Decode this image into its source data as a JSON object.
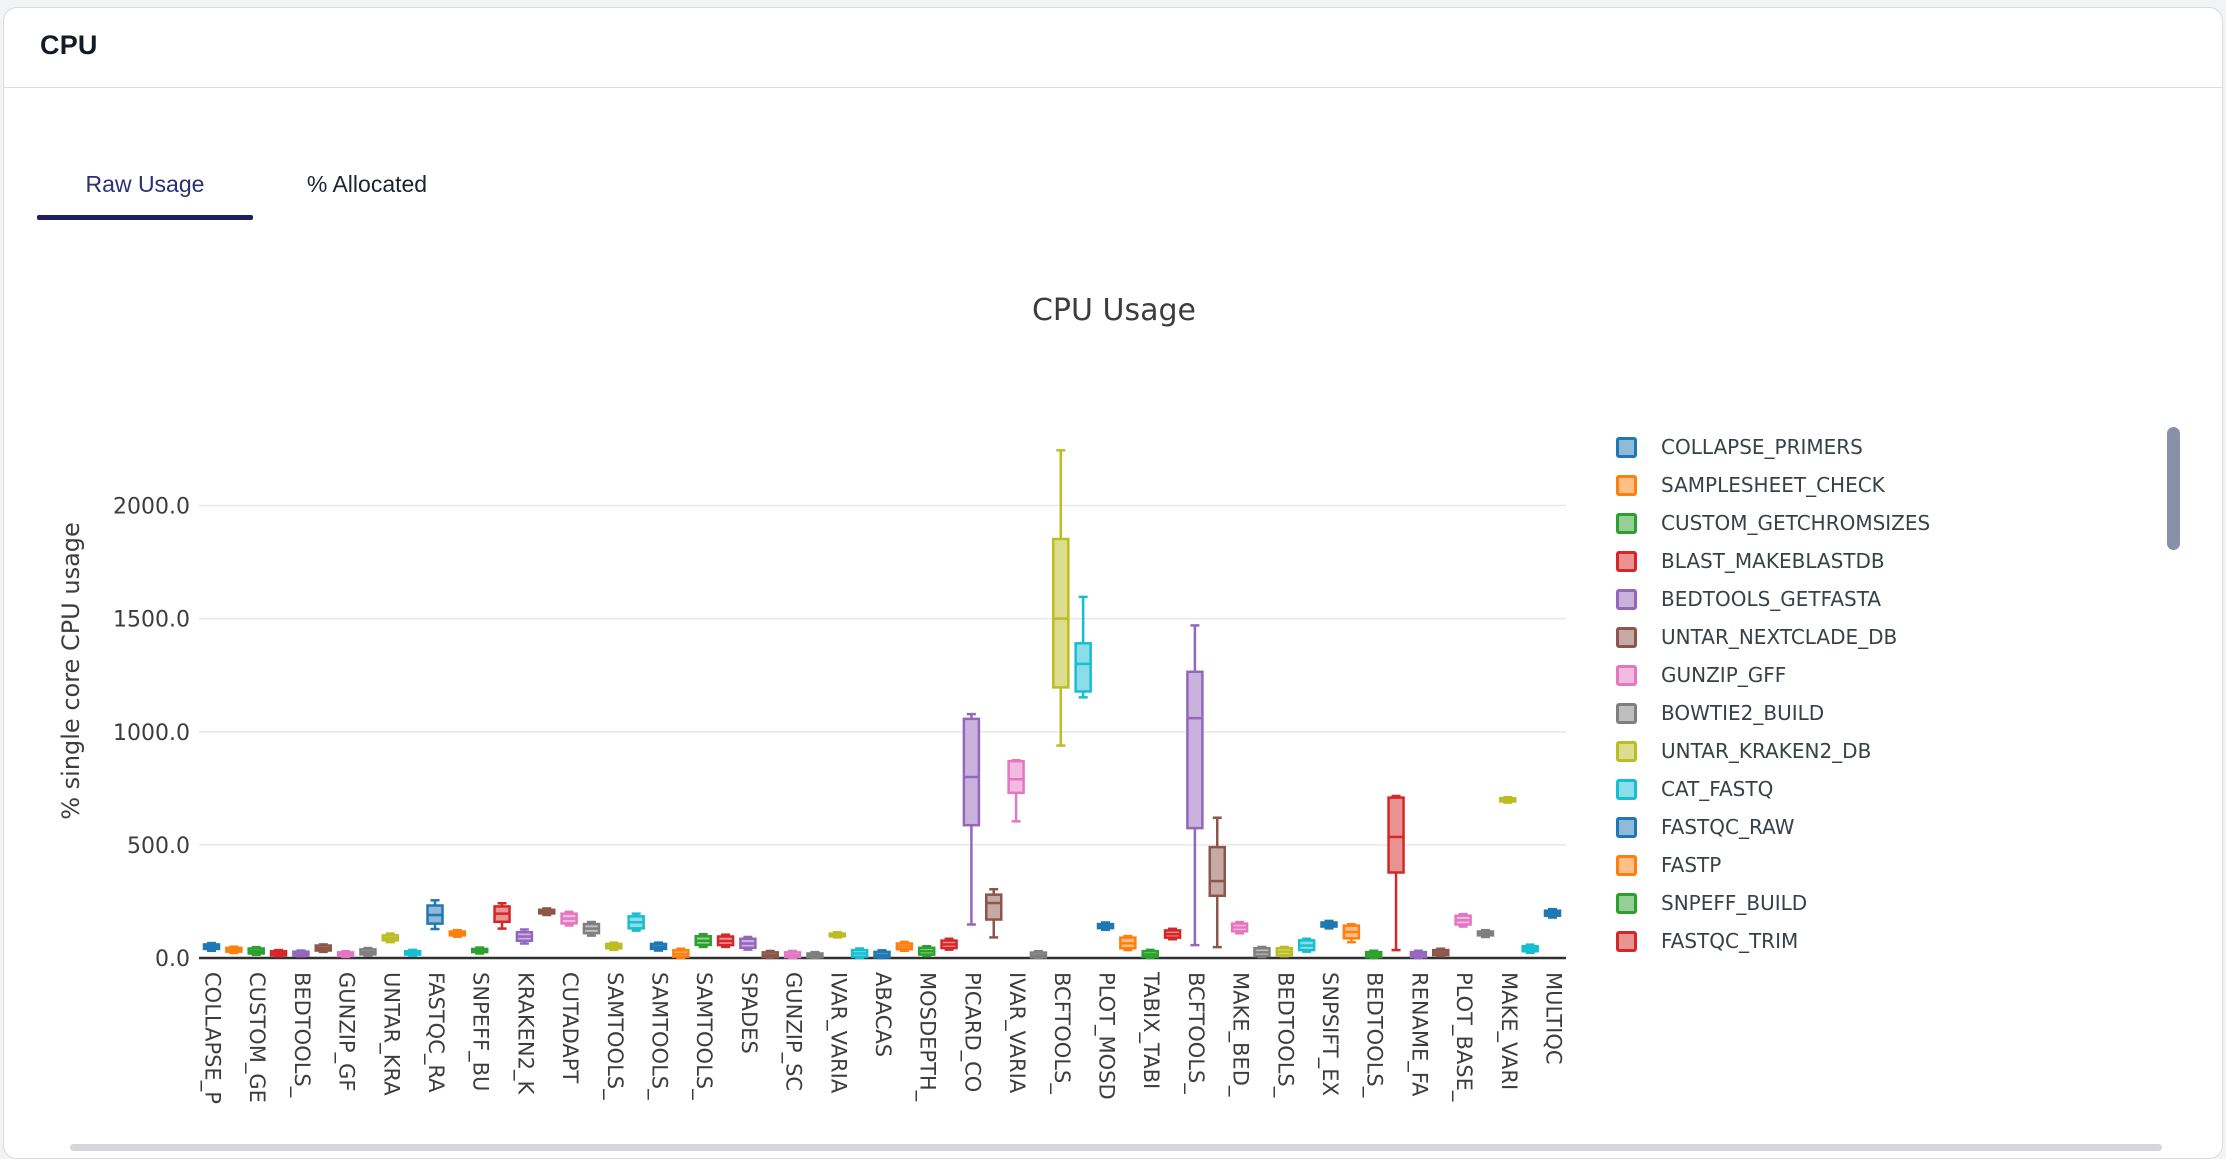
{
  "card": {
    "title": "CPU"
  },
  "tabs": [
    {
      "label": "Raw Usage",
      "active": true
    },
    {
      "label": "% Allocated",
      "active": false
    }
  ],
  "colors": {
    "tab_active": "#2c2e78",
    "tab_underline": "#1d1f5e",
    "tab_inactive": "#1d2330",
    "grid": "#e7e7e7",
    "axis": "#303030",
    "chart_text": "#3d3d3d",
    "legend_text": "#3a4048",
    "legend_scrollbar": "#8791a7",
    "bottom_scrollbar": "#d6d6da",
    "card_border": "#d8dade"
  },
  "chart_data": {
    "type": "boxplot",
    "title": "CPU Usage",
    "xlabel": "",
    "ylabel": "% single core CPU usage",
    "ylim": [
      0,
      2300
    ],
    "grid": true,
    "legend_position": "right",
    "ytick_values": [
      0,
      500,
      1000,
      1500,
      2000
    ],
    "ytick_labels": [
      "0.0",
      "500.0",
      "1000.0",
      "1500.0",
      "2000.0"
    ],
    "n_categories": 61,
    "categories_per_label": 2,
    "xtick_labels": [
      "COLLAPSE_P",
      "CUSTOM_GE",
      "BEDTOOLS_",
      "GUNZIP_GF",
      "UNTAR_KRA",
      "FASTQC_RA",
      "SNPEFF_BU",
      "KRAKEN2_K",
      "CUTADAPT",
      "SAMTOOLS_",
      "SAMTOOLS_",
      "SAMTOOLS_",
      "SPADES",
      "GUNZIP_SC",
      "IVAR_VARIA",
      "ABACAS",
      "MOSDEPTH_",
      "PICARD_CO",
      "IVAR_VARIA",
      "BCFTOOLS_",
      "PLOT_MOSD",
      "TABIX_TABI",
      "BCFTOOLS_",
      "MAKE_BED_",
      "BEDTOOLS_",
      "SNPSIFT_EX",
      "BEDTOOLS_",
      "RENAME_FA",
      "PLOT_BASE_",
      "MAKE_VARI",
      "MULTIQC"
    ],
    "palette": [
      "#1f77b4",
      "#ff7f0e",
      "#2ca02c",
      "#d62728",
      "#9467bd",
      "#8c564b",
      "#e377c2",
      "#7f7f7f",
      "#bcbd22",
      "#17becf"
    ],
    "palette_fill": [
      "#8fbbd9",
      "#ffbf86",
      "#95cf95",
      "#ea9393",
      "#c9b3dd",
      "#c5aaa5",
      "#f1bae0",
      "#bfbfbf",
      "#dddd90",
      "#8bdee7"
    ],
    "box_format": [
      "whisker_low",
      "q1",
      "median",
      "q3",
      "whisker_high"
    ],
    "boxes": [
      [
        32,
        40,
        50,
        60,
        66
      ],
      [
        22,
        28,
        36,
        45,
        50
      ],
      [
        14,
        20,
        30,
        42,
        48
      ],
      [
        8,
        12,
        20,
        30,
        35
      ],
      [
        8,
        12,
        18,
        28,
        33
      ],
      [
        27,
        33,
        43,
        55,
        60
      ],
      [
        5,
        9,
        16,
        25,
        30
      ],
      [
        10,
        16,
        26,
        38,
        44
      ],
      [
        70,
        78,
        88,
        100,
        108
      ],
      [
        10,
        15,
        22,
        30,
        36
      ],
      [
        128,
        152,
        190,
        232,
        255
      ],
      [
        94,
        100,
        108,
        117,
        123
      ],
      [
        20,
        26,
        33,
        40,
        46
      ],
      [
        130,
        160,
        196,
        228,
        242
      ],
      [
        64,
        76,
        95,
        114,
        126
      ],
      [
        190,
        197,
        205,
        213,
        219
      ],
      [
        144,
        153,
        174,
        196,
        204
      ],
      [
        99,
        110,
        130,
        150,
        159
      ],
      [
        36,
        43,
        52,
        62,
        68
      ],
      [
        121,
        131,
        158,
        184,
        196
      ],
      [
        33,
        40,
        50,
        62,
        68
      ],
      [
        0,
        6,
        18,
        34,
        41
      ],
      [
        49,
        58,
        76,
        96,
        105
      ],
      [
        49,
        57,
        75,
        95,
        103
      ],
      [
        37,
        45,
        64,
        85,
        93
      ],
      [
        0,
        4,
        13,
        25,
        31
      ],
      [
        0,
        4,
        13,
        25,
        31
      ],
      [
        0,
        3,
        10,
        20,
        26
      ],
      [
        91,
        96,
        102,
        108,
        114
      ],
      [
        0,
        6,
        20,
        35,
        42
      ],
      [
        0,
        3,
        14,
        27,
        34
      ],
      [
        32,
        39,
        51,
        64,
        71
      ],
      [
        9,
        15,
        30,
        45,
        52
      ],
      [
        37,
        44,
        60,
        77,
        85
      ],
      [
        148,
        587,
        800,
        1057,
        1078
      ],
      [
        91,
        170,
        243,
        280,
        304
      ],
      [
        604,
        730,
        790,
        870,
        874
      ],
      [
        0,
        3,
        12,
        24,
        30
      ],
      [
        939,
        1196,
        1500,
        1852,
        2244
      ],
      [
        1152,
        1178,
        1300,
        1391,
        1596
      ],
      [
        125,
        132,
        141,
        150,
        157
      ],
      [
        35,
        43,
        65,
        90,
        97
      ],
      [
        0,
        5,
        16,
        30,
        36
      ],
      [
        83,
        90,
        105,
        122,
        129
      ],
      [
        57,
        574,
        1060,
        1265,
        1470
      ],
      [
        48,
        275,
        340,
        490,
        620
      ],
      [
        109,
        118,
        135,
        152,
        159
      ],
      [
        4,
        9,
        25,
        43,
        49
      ],
      [
        8,
        13,
        28,
        43,
        49
      ],
      [
        28,
        35,
        55,
        78,
        85
      ],
      [
        131,
        139,
        148,
        157,
        164
      ],
      [
        70,
        87,
        115,
        143,
        149
      ],
      [
        0,
        4,
        15,
        26,
        32
      ],
      [
        35,
        378,
        535,
        709,
        716
      ],
      [
        0,
        4,
        15,
        26,
        32
      ],
      [
        8,
        13,
        24,
        35,
        41
      ],
      [
        139,
        148,
        167,
        187,
        194
      ],
      [
        93,
        100,
        108,
        117,
        123
      ],
      [
        687,
        692,
        699,
        706,
        711
      ],
      [
        23,
        30,
        41,
        52,
        59
      ],
      [
        179,
        187,
        198,
        209,
        216
      ]
    ]
  },
  "legend": {
    "items": [
      {
        "label": "COLLAPSE_PRIMERS",
        "color_index": 0
      },
      {
        "label": "SAMPLESHEET_CHECK",
        "color_index": 1
      },
      {
        "label": "CUSTOM_GETCHROMSIZES",
        "color_index": 2
      },
      {
        "label": "BLAST_MAKEBLASTDB",
        "color_index": 3
      },
      {
        "label": "BEDTOOLS_GETFASTA",
        "color_index": 4
      },
      {
        "label": "UNTAR_NEXTCLADE_DB",
        "color_index": 5
      },
      {
        "label": "GUNZIP_GFF",
        "color_index": 6
      },
      {
        "label": "BOWTIE2_BUILD",
        "color_index": 7
      },
      {
        "label": "UNTAR_KRAKEN2_DB",
        "color_index": 8
      },
      {
        "label": "CAT_FASTQ",
        "color_index": 9
      },
      {
        "label": "FASTQC_RAW",
        "color_index": 0
      },
      {
        "label": "FASTP",
        "color_index": 1
      },
      {
        "label": "SNPEFF_BUILD",
        "color_index": 2
      },
      {
        "label": "FASTQC_TRIM",
        "color_index": 3
      }
    ]
  }
}
